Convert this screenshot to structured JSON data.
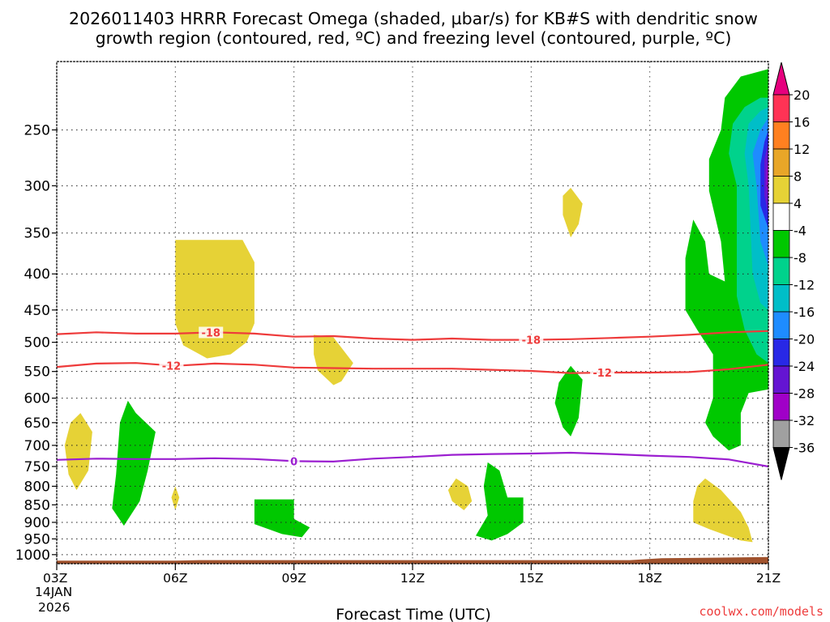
{
  "chart_data": {
    "type": "heatmap",
    "title_lines": [
      "2026011403 HRRR Forecast Omega (shaded, µbar/s) for KB#S with dendritic snow",
      "growth region (contoured, red, ºC) and freezing level (contoured, purple, ºC)"
    ],
    "xlabel": "Forecast Time (UTC)",
    "ylabel": "",
    "x_ticks": [
      "03Z",
      "06Z",
      "09Z",
      "12Z",
      "15Z",
      "18Z",
      "21Z"
    ],
    "x_tick_hours": [
      3,
      6,
      9,
      12,
      15,
      18,
      21
    ],
    "x_date_lines": [
      "14JAN",
      "2026"
    ],
    "xlim_hours": [
      3,
      21
    ],
    "y_ticks": [
      250,
      300,
      350,
      400,
      450,
      500,
      550,
      600,
      650,
      700,
      750,
      800,
      850,
      900,
      950,
      1000
    ],
    "ylim_hPa": [
      200,
      1030
    ],
    "y_scale": "log-pressure",
    "grid": true,
    "credit": "coolwx.com/models",
    "colorbar": {
      "labels": [
        "20",
        "16",
        "12",
        "8",
        "4",
        "-4",
        "-8",
        "-12",
        "-16",
        "-20",
        "-24",
        "-28",
        "-32",
        "-36"
      ],
      "colors": [
        "#ff3355",
        "#ff8020",
        "#e8a628",
        "#e6d236",
        "#ffffff",
        "#00c800",
        "#00d28c",
        "#00bec8",
        "#1e8cff",
        "#2828e6",
        "#6414d2",
        "#a000c8",
        "#a0a0a0"
      ],
      "top_arrow_color": "#e6007e",
      "bottom_arrow_color": "#000000"
    },
    "contours": [
      {
        "label": "-18",
        "color": "#ee3b3b",
        "hours": [
          3,
          4,
          5,
          6,
          7,
          8,
          9,
          10,
          11,
          12,
          13,
          14,
          15,
          16,
          17,
          18,
          19,
          20,
          21
        ],
        "hPa": [
          487,
          484,
          486,
          486,
          484,
          486,
          491,
          490,
          494,
          496,
          494,
          496,
          496,
          495,
          493,
          491,
          488,
          484,
          482
        ],
        "label_at_hours": [
          6.9,
          15
        ]
      },
      {
        "label": "-12",
        "color": "#ee3b3b",
        "hours": [
          3,
          4,
          5,
          6,
          7,
          8,
          9,
          10,
          11,
          12,
          13,
          14,
          15,
          16,
          17,
          18,
          19,
          20,
          21
        ],
        "hPa": [
          542,
          536,
          535,
          540,
          536,
          538,
          543,
          544,
          545,
          545,
          545,
          547,
          549,
          553,
          552,
          552,
          551,
          546,
          538
        ],
        "label_at_hours": [
          5.9,
          16.8
        ]
      },
      {
        "label": "0",
        "color": "#9b1fd0",
        "hours": [
          3,
          4,
          5,
          6,
          7,
          8,
          9,
          10,
          11,
          12,
          13,
          14,
          15,
          16,
          17,
          18,
          19,
          20,
          21
        ],
        "hPa": [
          734,
          731,
          732,
          732,
          730,
          732,
          737,
          738,
          731,
          727,
          722,
          720,
          719,
          717,
          720,
          724,
          727,
          733,
          750
        ],
        "label_at_hours": [
          9
        ]
      }
    ],
    "omega_regions": [
      {
        "class": "4",
        "color": "#e6d236",
        "points": [
          [
            7.0,
            358
          ],
          [
            7.7,
            358
          ],
          [
            8.0,
            385
          ],
          [
            8.0,
            470
          ],
          [
            7.8,
            500
          ],
          [
            7.4,
            520
          ],
          [
            6.8,
            527
          ],
          [
            6.2,
            505
          ],
          [
            6.0,
            470
          ],
          [
            6.0,
            358
          ]
        ]
      },
      {
        "class": "4",
        "color": "#e6d236",
        "points": [
          [
            9.5,
            488
          ],
          [
            10.0,
            492
          ],
          [
            10.5,
            535
          ],
          [
            10.2,
            568
          ],
          [
            10.0,
            575
          ],
          [
            9.6,
            548
          ],
          [
            9.5,
            520
          ]
        ]
      },
      {
        "class": "4",
        "color": "#e6d236",
        "points": [
          [
            16.0,
            302
          ],
          [
            16.3,
            318
          ],
          [
            16.2,
            340
          ],
          [
            16.0,
            355
          ],
          [
            15.8,
            330
          ],
          [
            15.8,
            310
          ]
        ]
      },
      {
        "class": "4",
        "color": "#e6d236",
        "points": [
          [
            3.6,
            630
          ],
          [
            3.9,
            670
          ],
          [
            3.8,
            760
          ],
          [
            3.5,
            810
          ],
          [
            3.3,
            770
          ],
          [
            3.2,
            700
          ],
          [
            3.35,
            650
          ]
        ]
      },
      {
        "class": "4",
        "color": "#e6d236",
        "points": [
          [
            6.0,
            800
          ],
          [
            6.1,
            830
          ],
          [
            6.0,
            865
          ],
          [
            5.9,
            830
          ]
        ]
      },
      {
        "class": "4",
        "color": "#e6d236",
        "points": [
          [
            13.1,
            780
          ],
          [
            13.4,
            800
          ],
          [
            13.5,
            840
          ],
          [
            13.3,
            865
          ],
          [
            13.0,
            840
          ],
          [
            12.9,
            810
          ]
        ]
      },
      {
        "class": "4",
        "color": "#e6d236",
        "points": [
          [
            19.4,
            780
          ],
          [
            19.8,
            810
          ],
          [
            20.3,
            870
          ],
          [
            20.5,
            915
          ],
          [
            20.6,
            960
          ],
          [
            20.3,
            955
          ],
          [
            19.5,
            920
          ],
          [
            19.1,
            900
          ],
          [
            19.1,
            840
          ],
          [
            19.2,
            800
          ]
        ]
      },
      {
        "class": "-4",
        "color": "#00c800",
        "points": [
          [
            4.8,
            605
          ],
          [
            5.0,
            630
          ],
          [
            5.5,
            670
          ],
          [
            5.3,
            760
          ],
          [
            5.1,
            840
          ],
          [
            4.7,
            910
          ],
          [
            4.4,
            860
          ],
          [
            4.5,
            770
          ],
          [
            4.6,
            650
          ]
        ]
      },
      {
        "class": "-4",
        "color": "#00c800",
        "points": [
          [
            8.0,
            835
          ],
          [
            9.0,
            835
          ],
          [
            9.0,
            890
          ],
          [
            9.4,
            915
          ],
          [
            9.2,
            945
          ],
          [
            8.7,
            935
          ],
          [
            8.0,
            905
          ]
        ]
      },
      {
        "class": "-4",
        "color": "#00c800",
        "points": [
          [
            13.9,
            740
          ],
          [
            14.2,
            760
          ],
          [
            14.4,
            830
          ],
          [
            14.8,
            830
          ],
          [
            14.8,
            900
          ],
          [
            14.4,
            935
          ],
          [
            14.0,
            955
          ],
          [
            13.6,
            940
          ],
          [
            13.9,
            880
          ],
          [
            13.8,
            800
          ]
        ]
      },
      {
        "class": "-4",
        "color": "#00c800",
        "points": [
          [
            16.0,
            540
          ],
          [
            16.3,
            565
          ],
          [
            16.2,
            640
          ],
          [
            16.0,
            680
          ],
          [
            15.8,
            660
          ],
          [
            15.6,
            610
          ],
          [
            15.7,
            570
          ]
        ]
      },
      {
        "class": "-4",
        "color": "#00c800",
        "points": [
          [
            21.0,
            205
          ],
          [
            21.0,
            583
          ],
          [
            20.5,
            590
          ],
          [
            20.3,
            630
          ],
          [
            20.3,
            700
          ],
          [
            20.0,
            712
          ],
          [
            19.6,
            680
          ],
          [
            19.4,
            650
          ],
          [
            19.6,
            600
          ],
          [
            19.6,
            520
          ],
          [
            19.2,
            480
          ],
          [
            18.9,
            450
          ],
          [
            18.9,
            380
          ],
          [
            19.1,
            335
          ],
          [
            19.4,
            360
          ],
          [
            19.5,
            400
          ],
          [
            19.9,
            410
          ],
          [
            19.8,
            360
          ],
          [
            19.5,
            305
          ],
          [
            19.5,
            275
          ],
          [
            19.8,
            250
          ],
          [
            19.9,
            225
          ],
          [
            20.3,
            210
          ]
        ]
      },
      {
        "class": "-8",
        "color": "#00d28c",
        "points": [
          [
            21.0,
            225
          ],
          [
            21.0,
            535
          ],
          [
            20.7,
            520
          ],
          [
            20.4,
            480
          ],
          [
            20.2,
            430
          ],
          [
            20.2,
            300
          ],
          [
            20.0,
            270
          ],
          [
            20.1,
            245
          ],
          [
            20.4,
            232
          ],
          [
            20.8,
            225
          ]
        ]
      },
      {
        "class": "-12",
        "color": "#00bec8",
        "points": [
          [
            21.0,
            232
          ],
          [
            21.0,
            450
          ],
          [
            20.8,
            440
          ],
          [
            20.6,
            400
          ],
          [
            20.5,
            300
          ],
          [
            20.4,
            270
          ],
          [
            20.5,
            245
          ],
          [
            20.8,
            235
          ]
        ]
      },
      {
        "class": "-16",
        "color": "#1e8cff",
        "points": [
          [
            21.0,
            240
          ],
          [
            21.0,
            390
          ],
          [
            20.8,
            360
          ],
          [
            20.7,
            300
          ],
          [
            20.6,
            270
          ],
          [
            20.8,
            250
          ]
        ]
      },
      {
        "class": "-20",
        "color": "#2828e6",
        "points": [
          [
            21.0,
            250
          ],
          [
            21.0,
            345
          ],
          [
            20.8,
            320
          ],
          [
            20.8,
            280
          ],
          [
            20.9,
            260
          ]
        ]
      },
      {
        "class": "-24",
        "color": "#6414d2",
        "points": [
          [
            21.0,
            260
          ],
          [
            21.0,
            330
          ],
          [
            20.9,
            310
          ],
          [
            20.9,
            275
          ]
        ]
      },
      {
        "class": "-28",
        "color": "#a000c8",
        "points": [
          [
            21.0,
            275
          ],
          [
            21.0,
            315
          ],
          [
            20.95,
            300
          ],
          [
            20.95,
            285
          ]
        ]
      }
    ],
    "terrain": {
      "color": "#a0522d",
      "hours": [
        3,
        6,
        6.6,
        17.5,
        18.3,
        21
      ],
      "hPa": [
        1020,
        1020,
        1018,
        1018,
        1012,
        1008
      ]
    }
  }
}
